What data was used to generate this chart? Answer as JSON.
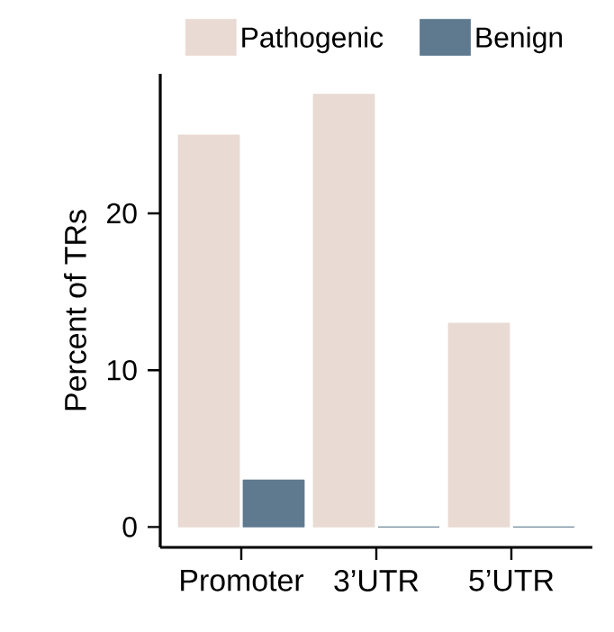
{
  "chart_data": {
    "type": "bar",
    "ylabel": "Percent of TRs",
    "categories": [
      "Promoter",
      "3’UTR",
      "5’UTR"
    ],
    "series": [
      {
        "name": "Pathogenic",
        "color": "#e9dbd3",
        "values": [
          25,
          27.6,
          13
        ]
      },
      {
        "name": "Benign",
        "color": "#5f7a8f",
        "values": [
          3,
          0,
          0
        ]
      }
    ],
    "ylim": [
      -1.3,
      28.9
    ],
    "yticks": [
      0,
      10,
      20
    ],
    "grid": false,
    "legend": "top"
  }
}
